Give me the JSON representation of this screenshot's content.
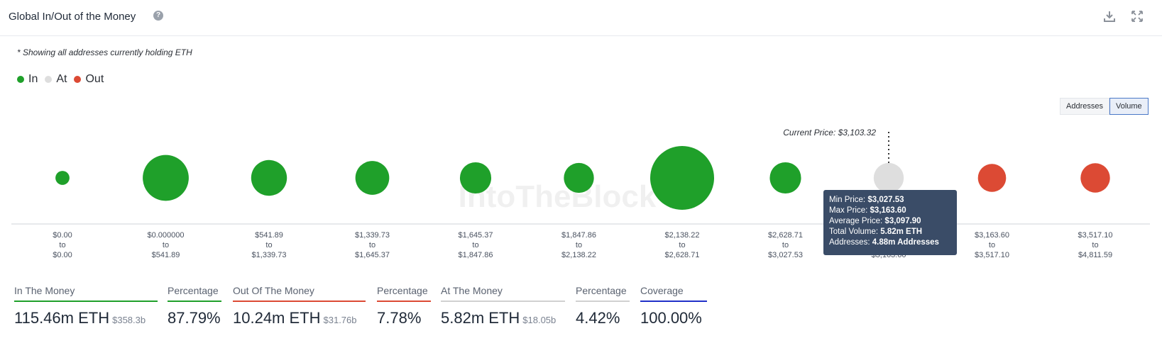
{
  "header": {
    "title": "Global In/Out of the Money"
  },
  "note": "* Showing all addresses currently holding ETH",
  "legend": [
    {
      "label": "In",
      "color": "#1fa02a"
    },
    {
      "label": "At",
      "color": "#dedede"
    },
    {
      "label": "Out",
      "color": "#dc4a34"
    }
  ],
  "toggle": {
    "addresses": "Addresses",
    "volume": "Volume",
    "selected": "Volume"
  },
  "watermark": "IntoTheBlock",
  "chart_data": {
    "type": "scatter",
    "current_price_label": "Current Price: $3,103.32",
    "current_price_bucket": 8,
    "buckets": [
      {
        "from": "$0.00",
        "to": "$0.00",
        "status": "In",
        "relative_size": 0.22
      },
      {
        "from": "$0.000000",
        "to": "$541.89",
        "status": "In",
        "relative_size": 0.72
      },
      {
        "from": "$541.89",
        "to": "$1,339.73",
        "status": "In",
        "relative_size": 0.56
      },
      {
        "from": "$1,339.73",
        "to": "$1,645.37",
        "status": "In",
        "relative_size": 0.53
      },
      {
        "from": "$1,645.37",
        "to": "$1,847.86",
        "status": "In",
        "relative_size": 0.49
      },
      {
        "from": "$1,847.86",
        "to": "$2,138.22",
        "status": "In",
        "relative_size": 0.47
      },
      {
        "from": "$2,138.22",
        "to": "$2,628.71",
        "status": "In",
        "relative_size": 1.0
      },
      {
        "from": "$2,628.71",
        "to": "$3,027.53",
        "status": "In",
        "relative_size": 0.49
      },
      {
        "from": "$3,027.53",
        "to": "$3,163.60",
        "status": "At",
        "relative_size": 0.47
      },
      {
        "from": "$3,163.60",
        "to": "$3,517.10",
        "status": "Out",
        "relative_size": 0.44
      },
      {
        "from": "$3,517.10",
        "to": "$4,811.59",
        "status": "Out",
        "relative_size": 0.46
      }
    ],
    "to_word": "to"
  },
  "tooltip": {
    "min_price_label": "Min Price:",
    "min_price": "$3,027.53",
    "max_price_label": "Max Price:",
    "max_price": "$3,163.60",
    "avg_price_label": "Average Price:",
    "avg_price": "$3,097.90",
    "volume_label": "Total Volume:",
    "volume": "5.82m ETH",
    "addresses_label": "Addresses:",
    "addresses": "4.88m Addresses"
  },
  "summary": [
    {
      "label": "In The Money",
      "value": "115.46m ETH",
      "sub": "$358.3b",
      "color": "#1fa02a"
    },
    {
      "label": "Percentage",
      "value": "87.79%",
      "sub": "",
      "color": "#1fa02a"
    },
    {
      "label": "Out Of The Money",
      "value": "10.24m ETH",
      "sub": "$31.76b",
      "color": "#dc4a34"
    },
    {
      "label": "Percentage",
      "value": "7.78%",
      "sub": "",
      "color": "#dc4a34"
    },
    {
      "label": "At The Money",
      "value": "5.82m ETH",
      "sub": "$18.05b",
      "color": "#d0d0d0"
    },
    {
      "label": "Percentage",
      "value": "4.42%",
      "sub": "",
      "color": "#d0d0d0"
    },
    {
      "label": "Coverage",
      "value": "100.00%",
      "sub": "",
      "color": "#2030c8"
    }
  ]
}
